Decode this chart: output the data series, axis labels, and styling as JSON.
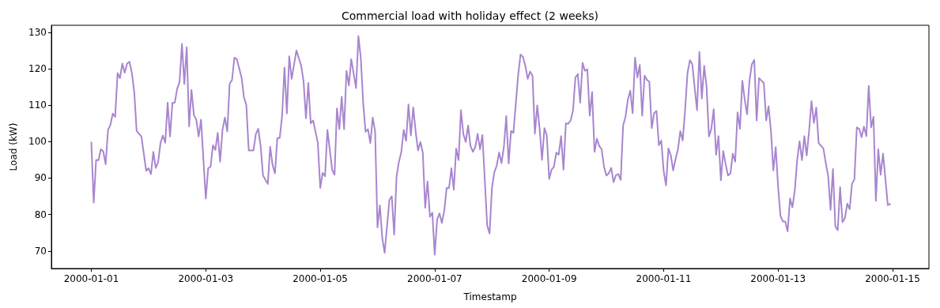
{
  "chart_data": {
    "type": "line",
    "title": "Commercial load with holiday effect (2 weeks)",
    "xlabel": "Timestamp",
    "ylabel": "Load (kW)",
    "x": [
      "2000-01-01T00:00",
      "2000-01-01T01:00",
      "2000-01-01T02:00",
      "2000-01-01T03:00",
      "2000-01-01T04:00",
      "2000-01-01T05:00",
      "2000-01-01T06:00",
      "2000-01-01T07:00",
      "2000-01-01T08:00",
      "2000-01-01T09:00",
      "2000-01-01T10:00",
      "2000-01-01T11:00",
      "2000-01-01T12:00",
      "2000-01-01T13:00",
      "2000-01-01T14:00",
      "2000-01-01T15:00",
      "2000-01-01T16:00",
      "2000-01-01T17:00",
      "2000-01-01T18:00",
      "2000-01-01T19:00",
      "2000-01-01T21:00",
      "2000-01-01T23:00",
      "2000-01-02T00:00",
      "2000-01-02T01:00",
      "2000-01-02T02:00",
      "2000-01-02T03:00",
      "2000-01-02T04:00",
      "2000-01-02T05:00",
      "2000-01-02T06:00",
      "2000-01-02T07:00",
      "2000-01-02T08:00",
      "2000-01-02T09:00",
      "2000-01-02T10:00",
      "2000-01-02T11:00",
      "2000-01-02T12:00",
      "2000-01-02T13:00",
      "2000-01-02T14:00",
      "2000-01-02T15:00",
      "2000-01-02T16:00",
      "2000-01-02T17:00",
      "2000-01-02T18:00",
      "2000-01-02T19:00",
      "2000-01-02T20:00",
      "2000-01-02T21:00",
      "2000-01-02T22:00",
      "2000-01-03T00:00",
      "2000-01-03T01:00",
      "2000-01-03T02:00",
      "2000-01-03T03:00",
      "2000-01-03T04:00",
      "2000-01-03T05:00",
      "2000-01-03T06:00",
      "2000-01-03T07:00",
      "2000-01-03T08:00",
      "2000-01-03T09:00",
      "2000-01-03T10:00",
      "2000-01-03T11:00",
      "2000-01-03T12:00",
      "2000-01-03T13:00",
      "2000-01-03T15:00",
      "2000-01-03T16:00",
      "2000-01-03T17:00",
      "2000-01-03T18:00",
      "2000-01-03T20:00",
      "2000-01-03T21:00",
      "2000-01-03T22:00",
      "2000-01-03T23:00",
      "2000-01-04T00:00",
      "2000-01-04T02:00",
      "2000-01-04T03:00",
      "2000-01-04T04:00",
      "2000-01-04T05:00",
      "2000-01-04T06:00",
      "2000-01-04T07:00",
      "2000-01-04T08:00",
      "2000-01-04T09:00",
      "2000-01-04T10:00",
      "2000-01-04T11:00",
      "2000-01-04T12:00",
      "2000-01-04T14:00",
      "2000-01-04T16:00",
      "2000-01-04T17:00",
      "2000-01-04T18:00",
      "2000-01-04T19:00",
      "2000-01-04T20:00",
      "2000-01-04T21:00",
      "2000-01-04T23:00",
      "2000-01-05T00:00",
      "2000-01-05T01:00",
      "2000-01-05T02:00",
      "2000-01-05T03:00",
      "2000-01-05T05:00",
      "2000-01-05T06:00",
      "2000-01-05T07:00",
      "2000-01-05T08:00",
      "2000-01-05T09:00",
      "2000-01-05T10:00",
      "2000-01-05T11:00",
      "2000-01-05T12:00",
      "2000-01-05T13:00",
      "2000-01-05T15:00",
      "2000-01-05T16:00",
      "2000-01-05T17:00",
      "2000-01-05T18:00",
      "2000-01-05T19:00",
      "2000-01-05T20:00",
      "2000-01-05T21:00",
      "2000-01-05T22:00",
      "2000-01-05T23:00",
      "2000-01-06T00:00",
      "2000-01-06T01:00",
      "2000-01-06T02:00",
      "2000-01-06T03:00",
      "2000-01-06T05:00",
      "2000-01-06T06:00",
      "2000-01-06T07:00",
      "2000-01-06T08:00",
      "2000-01-06T09:00",
      "2000-01-06T10:00",
      "2000-01-06T11:00",
      "2000-01-06T12:00",
      "2000-01-06T13:00",
      "2000-01-06T14:00",
      "2000-01-06T15:00",
      "2000-01-06T16:00",
      "2000-01-06T17:00",
      "2000-01-06T18:00",
      "2000-01-06T19:00",
      "2000-01-06T20:00",
      "2000-01-06T21:00",
      "2000-01-06T22:00",
      "2000-01-06T23:00",
      "2000-01-07T00:00",
      "2000-01-07T01:00",
      "2000-01-07T02:00",
      "2000-01-07T03:00",
      "2000-01-07T04:00",
      "2000-01-07T05:00",
      "2000-01-07T06:00",
      "2000-01-07T07:00",
      "2000-01-07T08:00",
      "2000-01-07T09:00",
      "2000-01-07T10:00",
      "2000-01-07T11:00",
      "2000-01-07T12:00",
      "2000-01-07T13:00",
      "2000-01-07T14:00",
      "2000-01-07T15:00",
      "2000-01-07T16:00",
      "2000-01-07T17:00",
      "2000-01-07T18:00",
      "2000-01-07T19:00",
      "2000-01-07T20:00",
      "2000-01-07T22:00",
      "2000-01-07T23:00",
      "2000-01-08T00:00",
      "2000-01-08T01:00",
      "2000-01-08T02:00",
      "2000-01-08T03:00",
      "2000-01-08T04:00",
      "2000-01-08T05:00",
      "2000-01-08T06:00",
      "2000-01-08T07:00",
      "2000-01-08T08:00",
      "2000-01-08T09:00",
      "2000-01-08T11:00",
      "2000-01-08T12:00",
      "2000-01-08T13:00",
      "2000-01-08T14:00",
      "2000-01-08T15:00",
      "2000-01-08T16:00",
      "2000-01-08T17:00",
      "2000-01-08T18:00",
      "2000-01-08T19:00",
      "2000-01-08T20:00",
      "2000-01-08T21:00",
      "2000-01-08T22:00",
      "2000-01-08T23:00",
      "2000-01-09T00:00",
      "2000-01-09T01:00",
      "2000-01-09T02:00",
      "2000-01-09T03:00",
      "2000-01-09T04:00",
      "2000-01-09T05:00",
      "2000-01-09T06:00",
      "2000-01-09T07:00",
      "2000-01-09T08:00",
      "2000-01-09T09:00",
      "2000-01-09T10:00",
      "2000-01-09T11:00",
      "2000-01-09T12:00",
      "2000-01-09T13:00",
      "2000-01-09T14:00",
      "2000-01-09T15:00",
      "2000-01-09T16:00",
      "2000-01-09T17:00",
      "2000-01-09T18:00",
      "2000-01-09T19:00",
      "2000-01-09T20:00",
      "2000-01-09T21:00",
      "2000-01-09T22:00",
      "2000-01-09T23:00",
      "2000-01-10T00:00",
      "2000-01-10T01:00",
      "2000-01-10T02:00",
      "2000-01-10T03:00",
      "2000-01-10T04:00",
      "2000-01-10T05:00",
      "2000-01-10T06:00",
      "2000-01-10T07:00",
      "2000-01-10T08:00",
      "2000-01-10T09:00",
      "2000-01-10T10:00",
      "2000-01-10T11:00",
      "2000-01-10T12:00",
      "2000-01-10T13:00",
      "2000-01-10T14:00",
      "2000-01-10T15:00",
      "2000-01-10T16:00",
      "2000-01-10T17:00",
      "2000-01-10T18:00",
      "2000-01-10T19:00",
      "2000-01-10T20:00",
      "2000-01-10T21:00",
      "2000-01-10T22:00",
      "2000-01-10T23:00",
      "2000-01-11T00:00",
      "2000-01-11T01:00",
      "2000-01-11T02:00",
      "2000-01-11T03:00",
      "2000-01-11T04:00",
      "2000-01-11T05:00",
      "2000-01-11T06:00",
      "2000-01-11T07:00",
      "2000-01-11T08:00",
      "2000-01-11T09:00",
      "2000-01-11T10:00",
      "2000-01-11T11:00",
      "2000-01-11T12:00",
      "2000-01-11T13:00",
      "2000-01-11T14:00",
      "2000-01-11T15:00",
      "2000-01-11T16:00",
      "2000-01-11T17:00",
      "2000-01-11T18:00",
      "2000-01-11T19:00",
      "2000-01-11T20:00",
      "2000-01-11T21:00",
      "2000-01-11T22:00",
      "2000-01-11T23:00",
      "2000-01-12T00:00",
      "2000-01-12T01:00",
      "2000-01-12T02:00",
      "2000-01-12T03:00",
      "2000-01-12T04:00",
      "2000-01-12T05:00",
      "2000-01-12T06:00",
      "2000-01-12T07:00",
      "2000-01-12T08:00",
      "2000-01-12T09:00",
      "2000-01-12T10:00",
      "2000-01-12T11:00",
      "2000-01-12T12:00",
      "2000-01-12T13:00",
      "2000-01-12T14:00",
      "2000-01-12T15:00",
      "2000-01-12T16:00",
      "2000-01-12T17:00",
      "2000-01-12T18:00",
      "2000-01-12T19:00",
      "2000-01-12T20:00",
      "2000-01-12T21:00",
      "2000-01-12T22:00",
      "2000-01-12T23:00",
      "2000-01-13T00:00",
      "2000-01-13T01:00",
      "2000-01-13T02:00",
      "2000-01-13T03:00",
      "2000-01-13T04:00",
      "2000-01-13T05:00",
      "2000-01-13T06:00",
      "2000-01-13T07:00",
      "2000-01-13T08:00",
      "2000-01-13T09:00",
      "2000-01-13T10:00",
      "2000-01-13T11:00",
      "2000-01-13T12:00",
      "2000-01-13T13:00",
      "2000-01-13T14:00",
      "2000-01-13T15:00",
      "2000-01-13T16:00",
      "2000-01-13T17:00",
      "2000-01-13T19:00",
      "2000-01-13T20:00",
      "2000-01-13T21:00",
      "2000-01-13T22:00",
      "2000-01-13T23:00",
      "2000-01-14T00:00",
      "2000-01-14T01:00",
      "2000-01-14T02:00",
      "2000-01-14T03:00",
      "2000-01-14T04:00",
      "2000-01-14T05:00",
      "2000-01-14T06:00",
      "2000-01-14T07:00",
      "2000-01-14T08:00",
      "2000-01-14T09:00",
      "2000-01-14T10:00",
      "2000-01-14T11:00",
      "2000-01-14T12:00",
      "2000-01-14T13:00",
      "2000-01-14T14:00",
      "2000-01-14T15:00",
      "2000-01-14T16:00",
      "2000-01-14T17:00",
      "2000-01-14T18:00",
      "2000-01-14T19:00",
      "2000-01-14T20:00",
      "2000-01-14T21:00",
      "2000-01-14T22:00",
      "2000-01-14T23:00"
    ],
    "series": [
      {
        "color": "#a886cf",
        "values": [
          99.8,
          83.3,
          95.0,
          94.9,
          97.9,
          97.3,
          93.8,
          103.2,
          104.6,
          107.7,
          106.8,
          118.8,
          117.4,
          121.4,
          118.9,
          121.4,
          121.9,
          118.8,
          113.6,
          102.9,
          101.4,
          92.0,
          92.7,
          91.1,
          97.2,
          92.8,
          94.3,
          99.6,
          101.7,
          99.7,
          110.7,
          101.4,
          110.6,
          110.7,
          114.5,
          116.4,
          126.8,
          115.8,
          125.9,
          104.2,
          114.2,
          107.3,
          106.0,
          101.4,
          106.0,
          84.4,
          92.7,
          93.1,
          99.0,
          97.7,
          102.4,
          94.5,
          103.2,
          106.6,
          102.8,
          115.8,
          116.9,
          123.0,
          122.6,
          117.6,
          112.2,
          110.0,
          97.6,
          97.6,
          102.1,
          103.5,
          98.8,
          90.7,
          88.4,
          98.6,
          93.6,
          91.3,
          101.0,
          101.0,
          107.1,
          120.3,
          107.7,
          123.4,
          117.2,
          125.0,
          120.8,
          116.5,
          106.4,
          116.1,
          105.0,
          105.8,
          99.6,
          87.3,
          91.4,
          90.5,
          103.2,
          92.3,
          90.9,
          109.1,
          103.4,
          112.3,
          103.4,
          119.4,
          115.4,
          122.6,
          114.7,
          128.9,
          123.0,
          110.7,
          102.7,
          103.4,
          99.6,
          106.6,
          102.8,
          76.5,
          82.5,
          73.6,
          69.5,
          84.0,
          85.0,
          74.5,
          90.5,
          94.5,
          97.2,
          103.2,
          100.2,
          110.2,
          101.7,
          109.4,
          102.8,
          97.6,
          99.9,
          97.0,
          81.9,
          89.1,
          79.4,
          80.5,
          69.0,
          78.6,
          80.3,
          77.7,
          81.0,
          87.3,
          87.3,
          92.7,
          86.8,
          98.1,
          94.9,
          108.6,
          102.1,
          99.9,
          104.4,
          98.8,
          97.2,
          98.5,
          102.1,
          97.9,
          101.8,
          77.0,
          74.8,
          87.3,
          91.6,
          93.4,
          97.0,
          94.1,
          98.5,
          107.0,
          94.0,
          102.9,
          102.4,
          118.3,
          123.9,
          123.2,
          120.8,
          117.2,
          119.2,
          118.1,
          102.2,
          109.9,
          103.5,
          95.0,
          103.7,
          101.7,
          89.8,
          92.3,
          93.1,
          97.0,
          96.4,
          101.5,
          92.3,
          105.0,
          104.9,
          105.8,
          108.6,
          117.6,
          118.5,
          110.7,
          121.6,
          119.4,
          119.8,
          107.1,
          113.6,
          97.2,
          100.8,
          98.8,
          97.9,
          93.1,
          90.7,
          91.3,
          92.8,
          88.9,
          90.8,
          91.1,
          89.5,
          104.4,
          106.8,
          111.5,
          114.0,
          107.8,
          123.0,
          117.6,
          121.0,
          107.1,
          118.1,
          116.9,
          116.4,
          103.7,
          107.8,
          108.4,
          99.0,
          100.3,
          92.0,
          88.0,
          98.1,
          96.3,
          92.1,
          95.2,
          97.9,
          102.9,
          100.3,
          108.6,
          118.8,
          122.3,
          121.3,
          114.8,
          108.6,
          124.6,
          111.8,
          120.8,
          115.1,
          101.4,
          103.5,
          108.9,
          96.4,
          101.5,
          89.4,
          97.4,
          93.8,
          90.7,
          91.3,
          96.7,
          94.5,
          108.0,
          103.5,
          116.7,
          111.5,
          107.5,
          116.7,
          121.2,
          122.4,
          105.8,
          117.4,
          116.7,
          116.1,
          105.8,
          109.7,
          102.9,
          92.1,
          98.5,
          87.6,
          79.6,
          78.1,
          78.1,
          75.4,
          84.4,
          82.0,
          86.6,
          95.0,
          100.1,
          94.9,
          101.5,
          96.2,
          102.9,
          111.1,
          105.1,
          109.3,
          99.6,
          98.1,
          94.1,
          90.5,
          81.3,
          92.5,
          76.8,
          75.7,
          87.5,
          77.9,
          79.0,
          83.0,
          81.5,
          88.4,
          89.7,
          103.9,
          103.5,
          101.2,
          104.1,
          101.5,
          115.3,
          103.9,
          106.8,
          83.7,
          97.9,
          90.9,
          96.7,
          89.8,
          82.6,
          82.9
        ]
      }
    ],
    "xlim": [
      "1999-12-31T07:15",
      "2000-01-15T15:15"
    ],
    "xticks": [
      "2000-01-01",
      "2000-01-03",
      "2000-01-05",
      "2000-01-07",
      "2000-01-09",
      "2000-01-11",
      "2000-01-13",
      "2000-01-15"
    ],
    "ylim": [
      65.2,
      131.9
    ],
    "yticks": [
      70,
      80,
      90,
      100,
      110,
      120,
      130
    ],
    "grid": false,
    "marker": "none",
    "line_style": "solid"
  }
}
